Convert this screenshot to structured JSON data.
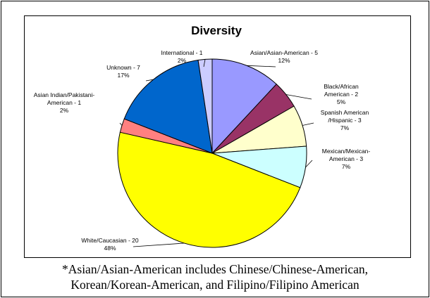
{
  "chart_data": {
    "type": "pie",
    "title": "Diversity",
    "slices": [
      {
        "name": "Asian/Asian-American",
        "value": 5,
        "percent": "12%",
        "label": [
          "Asian/Asian-American - 5",
          "12%"
        ],
        "color": "#9999ff"
      },
      {
        "name": "Black/African American",
        "value": 2,
        "percent": "5%",
        "label": [
          "Black/African",
          "American - 2",
          "5%"
        ],
        "color": "#993366"
      },
      {
        "name": "Spanish American /Hispanic",
        "value": 3,
        "percent": "7%",
        "label": [
          "Spanish American",
          "/Hispanic - 3",
          "7%"
        ],
        "color": "#ffffcc"
      },
      {
        "name": "Mexican/Mexican-American",
        "value": 3,
        "percent": "7%",
        "label": [
          "Mexican/Mexican-",
          "American - 3",
          "7%"
        ],
        "color": "#ccffff"
      },
      {
        "name": "White/Caucasian",
        "value": 20,
        "percent": "48%",
        "label": [
          "White/Caucasian - 20",
          "48%"
        ],
        "color": "#ffff00"
      },
      {
        "name": "Asian Indian/Pakistani-American",
        "value": 1,
        "percent": "2%",
        "label": [
          "Asian Indian/Pakistani-",
          "American - 1",
          "2%"
        ],
        "color": "#ff8080"
      },
      {
        "name": "Unknown",
        "value": 7,
        "percent": "17%",
        "label": [
          "Unknown - 7",
          "17%"
        ],
        "color": "#0066cc"
      },
      {
        "name": "International",
        "value": 1,
        "percent": "2%",
        "label": [
          "International - 1",
          "2%"
        ],
        "color": "#ccccff"
      }
    ]
  },
  "footnote": {
    "line1": "*Asian/Asian-American includes Chinese/Chinese-American,",
    "line2": "Korean/Korean-American, and Filipino/Filipino American"
  }
}
